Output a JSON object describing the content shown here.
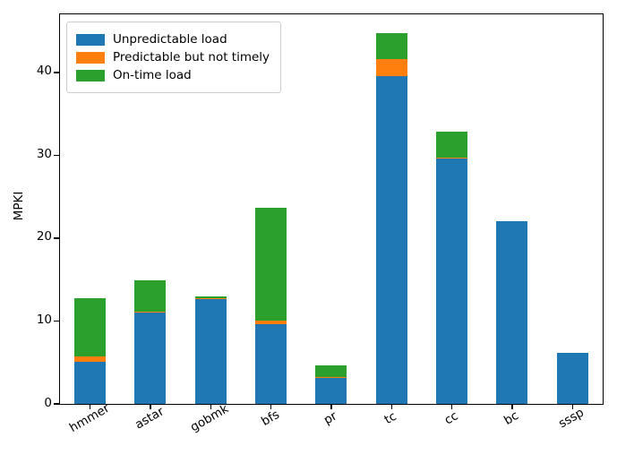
{
  "chart_data": {
    "type": "bar",
    "stacked": true,
    "title": "",
    "xlabel": "",
    "ylabel": "MPKI",
    "categories": [
      "hmmer",
      "astar",
      "gobmk",
      "bfs",
      "pr",
      "tc",
      "cc",
      "bc",
      "sssp"
    ],
    "series": [
      {
        "name": "Unpredictable load",
        "color": "#1f77b4",
        "values": [
          5.1,
          11.0,
          12.75,
          9.6,
          3.1,
          39.5,
          29.6,
          22.0,
          6.2
        ]
      },
      {
        "name": "Predictable but not timely",
        "color": "#ff7f0e",
        "values": [
          0.6,
          0.15,
          0.05,
          0.4,
          0.1,
          2.1,
          0.15,
          0.0,
          0.0
        ]
      },
      {
        "name": "On-time load",
        "color": "#2ca02c",
        "values": [
          7.1,
          3.75,
          0.2,
          13.7,
          1.45,
          3.1,
          3.1,
          0.0,
          0.0
        ]
      }
    ],
    "totals": [
      12.8,
      14.9,
      13.0,
      23.7,
      4.65,
      44.7,
      32.85,
      22.0,
      6.2
    ],
    "ylim": [
      0,
      47
    ],
    "yticks": [
      0,
      10,
      20,
      30,
      40
    ],
    "xtick_rotation": 30,
    "grid": false,
    "legend_position": "upper left"
  }
}
